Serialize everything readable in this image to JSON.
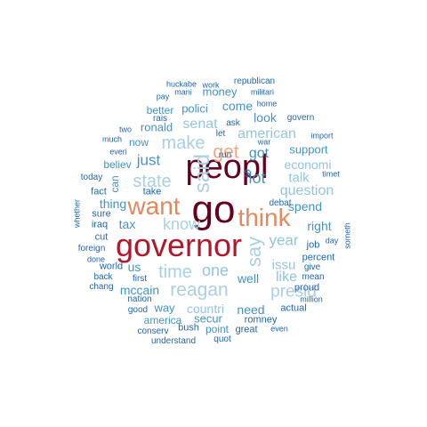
{
  "colors": {
    "darkred": "#67001f",
    "crimson": "#b2182b",
    "red": "#d6604d",
    "orange": "#e08a5f",
    "salmon": "#f4a582",
    "lightblue": "#a9cfe3",
    "skyblue": "#92c5de",
    "midblue": "#4393c3",
    "steelblue": "#3a7fb5",
    "navy": "#2166ac"
  },
  "words": {
    "peopl": "peopl",
    "go": "go",
    "governor": "governor",
    "want": "want",
    "think": "think",
    "get": "get",
    "said": "said",
    "say": "say",
    "make": "make",
    "state": "state",
    "know": "know",
    "time": "time",
    "reagan": "reagan",
    "one": "one",
    "presid": "presid",
    "lot": "lot",
    "year": "year",
    "question": "question",
    "american": "american",
    "like": "like",
    "issu": "issu",
    "just": "just",
    "senat": "senat",
    "got": "got",
    "economi": "economi",
    "talk": "talk",
    "come": "come",
    "look": "look",
    "tax": "tax",
    "countri": "countri",
    "mccain": "mccain",
    "thing": "thing",
    "spend": "spend",
    "support": "support",
    "right": "right",
    "us": "us",
    "well": "well",
    "need": "need",
    "way": "way",
    "secur": "secur",
    "money": "money",
    "polici": "polici",
    "ronald": "ronald",
    "better": "better",
    "now": "now",
    "believ": "believ",
    "can": "can",
    "point": "point",
    "america": "america",
    "world": "world",
    "take": "take",
    "iraq": "iraq",
    "cut": "cut",
    "fact": "fact",
    "sure": "sure",
    "today": "today",
    "job": "job",
    "percent": "percent",
    "give": "give",
    "proud": "proud",
    "mean": "mean",
    "actual": "actual",
    "romney": "romney",
    "bush": "bush",
    "great": "great",
    "conserv": "conserv",
    "understand": "understand",
    "quot": "quot",
    "good": "good",
    "nation": "nation",
    "first": "first",
    "chang": "chang",
    "back": "back",
    "done": "done",
    "foreign": "foreign",
    "whether": "whether",
    "much": "much",
    "two": "two",
    "everi": "everi",
    "rais": "rais",
    "pay": "pay",
    "mani": "mani",
    "huckabe": "huckabe",
    "work": "work",
    "republican": "republican",
    "militari": "militari",
    "home": "home",
    "govern": "govern",
    "import": "import",
    "ask": "ask",
    "let": "let",
    "war": "war",
    "run": "run",
    "dollar": "$",
    "debat": "debat",
    "timet": "timet",
    "day": "day",
    "even": "even",
    "someth": "someth",
    "million": "million"
  }
}
